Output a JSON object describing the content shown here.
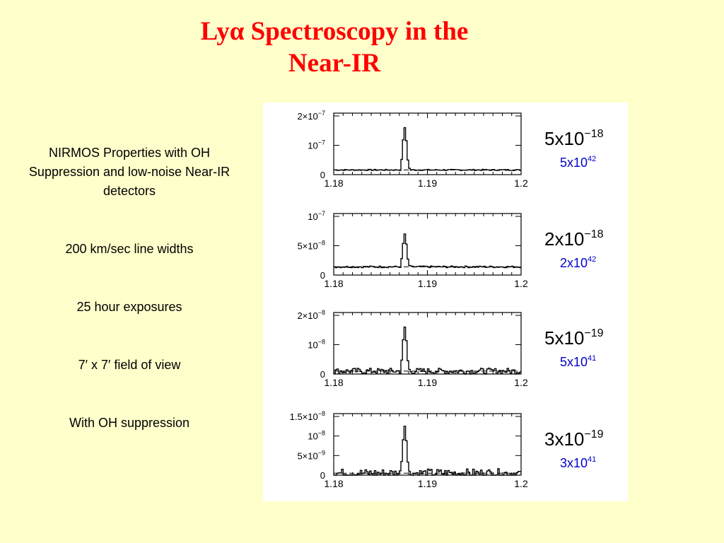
{
  "title": {
    "line1": "Lyα Spectroscopy in the",
    "line2": "Near-IR"
  },
  "bullets": [
    "NIRMOS Properties with OH Suppression and low-noise Near-IR detectors",
    "200 km/sec line widths",
    "25 hour exposures",
    "7′ x 7′  field of view",
    "With OH suppression"
  ],
  "colors": {
    "background": "#ffffcc",
    "title": "#ff0000",
    "luminosity": "#0000cc",
    "flux": "#000000"
  },
  "chart_data": [
    {
      "type": "line",
      "xlim": [
        1.18,
        1.2
      ],
      "xticks": [
        "1.18",
        "1.19",
        "1.2"
      ],
      "ylim": [
        0,
        2e-07
      ],
      "yticks": [
        {
          "v": 0,
          "b": "0",
          "e": ""
        },
        {
          "v": 1e-07,
          "b": "10",
          "e": "−7"
        },
        {
          "v": 2e-07,
          "b": "2×10",
          "e": "−7"
        }
      ],
      "continuum": 1.6e-08,
      "peak": 1.6e-07,
      "line_center": 1.1875,
      "noise": 0.02,
      "flux_label": {
        "base": "5x10",
        "exp": "−18"
      },
      "lum_label": {
        "base": "5x10",
        "exp": "42"
      }
    },
    {
      "type": "line",
      "xlim": [
        1.18,
        1.2
      ],
      "xticks": [
        "1.18",
        "1.19",
        "1.2"
      ],
      "ylim": [
        0,
        1e-07
      ],
      "yticks": [
        {
          "v": 0,
          "b": "0",
          "e": ""
        },
        {
          "v": 5e-08,
          "b": "5×10",
          "e": "−8"
        },
        {
          "v": 1e-07,
          "b": "10",
          "e": "−7"
        }
      ],
      "continuum": 1.4e-08,
      "peak": 7e-08,
      "line_center": 1.1875,
      "noise": 0.03,
      "flux_label": {
        "base": "2x10",
        "exp": "−18"
      },
      "lum_label": {
        "base": "2x10",
        "exp": "42"
      }
    },
    {
      "type": "line",
      "xlim": [
        1.18,
        1.2
      ],
      "xticks": [
        "1.18",
        "1.19",
        "1.2"
      ],
      "ylim": [
        0,
        2e-08
      ],
      "yticks": [
        {
          "v": 0,
          "b": "0",
          "e": ""
        },
        {
          "v": 1e-08,
          "b": "10",
          "e": "−8"
        },
        {
          "v": 2e-08,
          "b": "2×10",
          "e": "−8"
        }
      ],
      "continuum": 1e-09,
      "peak": 1.6e-08,
      "line_center": 1.1875,
      "noise": 0.1,
      "flux_label": {
        "base": "5x10",
        "exp": "−19"
      },
      "lum_label": {
        "base": "5x10",
        "exp": "41"
      }
    },
    {
      "type": "line",
      "xlim": [
        1.18,
        1.2
      ],
      "xticks": [
        "1.18",
        "1.19",
        "1.2"
      ],
      "ylim": [
        0,
        1.5e-08
      ],
      "yticks": [
        {
          "v": 0,
          "b": "0",
          "e": ""
        },
        {
          "v": 5e-09,
          "b": "5×10",
          "e": "−9"
        },
        {
          "v": 1e-08,
          "b": "10",
          "e": "−8"
        },
        {
          "v": 1.5e-08,
          "b": "1.5×10",
          "e": "−8"
        }
      ],
      "continuum": 5e-10,
      "peak": 1.25e-08,
      "line_center": 1.1875,
      "noise": 0.15,
      "flux_label": {
        "base": "3x10",
        "exp": "−19"
      },
      "lum_label": {
        "base": "3x10",
        "exp": "41"
      }
    }
  ]
}
